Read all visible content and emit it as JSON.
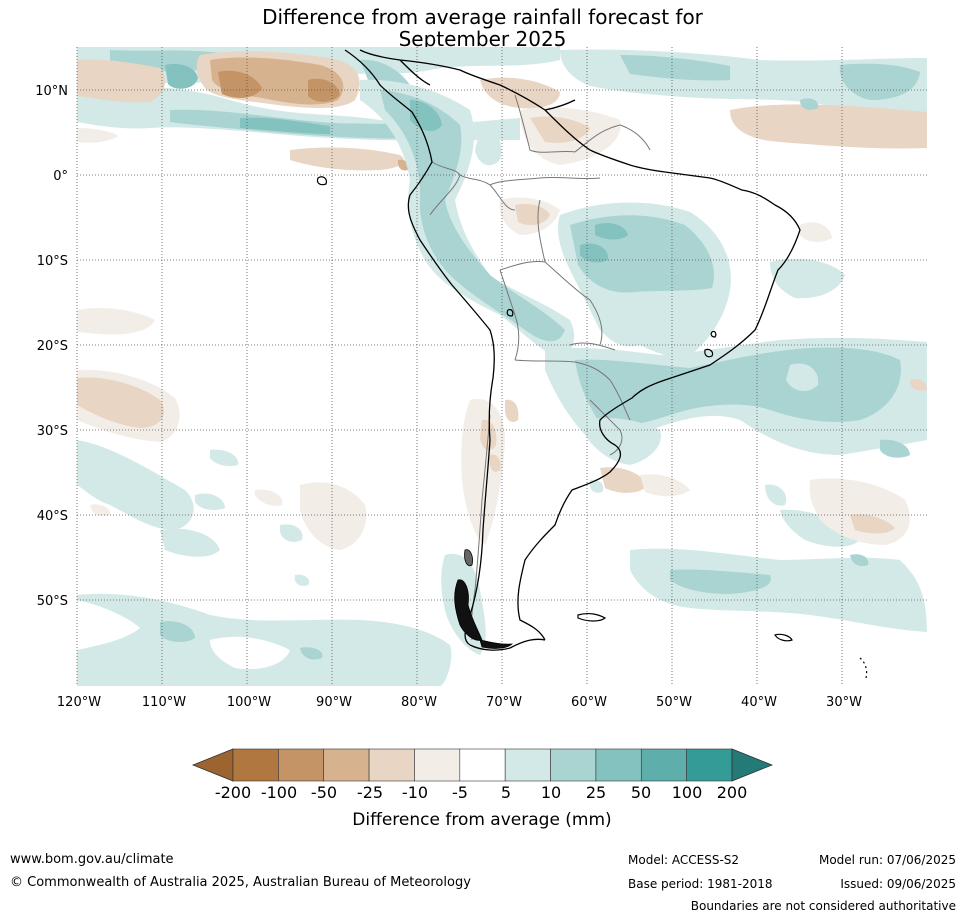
{
  "title": {
    "line1": "Difference from average rainfall forecast for",
    "line2": "September 2025"
  },
  "axes": {
    "lat_labels": [
      "10°N",
      "0°",
      "10°S",
      "20°S",
      "30°S",
      "40°S",
      "50°S"
    ],
    "lon_labels": [
      "120°W",
      "110°W",
      "100°W",
      "90°W",
      "80°W",
      "70°W",
      "60°W",
      "50°W",
      "40°W",
      "30°W"
    ]
  },
  "colorbar": {
    "ticks": [
      "-200",
      "-100",
      "-50",
      "-25",
      "-10",
      "-5",
      "5",
      "10",
      "25",
      "50",
      "100",
      "200"
    ],
    "colors": [
      "#9c6430",
      "#b07840",
      "#c49466",
      "#d6b28f",
      "#e8d5c3",
      "#f3ede7",
      "#ffffff",
      "#d3e9e7",
      "#a9d4d2",
      "#84c2bf",
      "#5eafab",
      "#359b97",
      "#247a77"
    ],
    "label": "Difference from average (mm)"
  },
  "footer": {
    "website": "www.bom.gov.au/climate",
    "copyright": "© Commonwealth of Australia 2025, Australian Bureau of Meteorology",
    "model": "Model: ACCESS-S2",
    "base_period": "Base period: 1981-2018",
    "model_run": "Model run: 07/06/2025",
    "issued": "Issued: 09/06/2025",
    "disclaimer": "Boundaries are not considered authoritative"
  }
}
